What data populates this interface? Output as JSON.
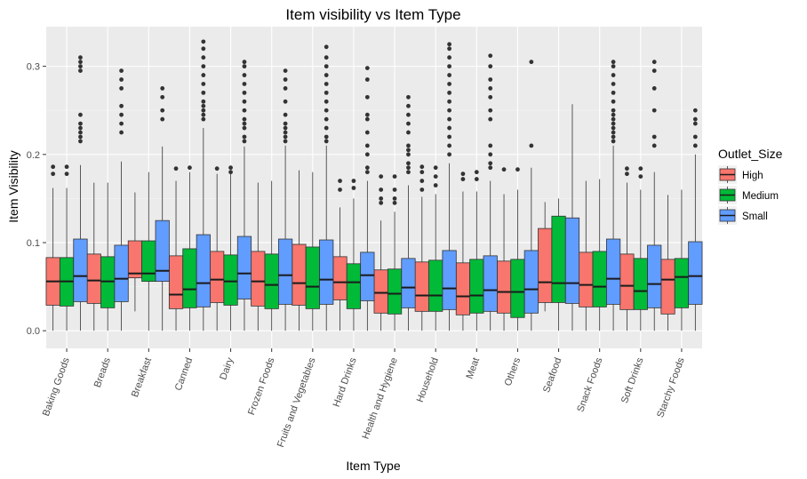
{
  "chart_data": {
    "type": "box",
    "title": "Item visibility vs Item Type",
    "xlabel": "Item Type",
    "ylabel": "Item Visibility",
    "ylim": [
      -0.02,
      0.345
    ],
    "yticks": [
      0.0,
      0.1,
      0.2,
      0.3
    ],
    "ytick_labels": [
      "0.0",
      "0.1",
      "0.2",
      "0.3"
    ],
    "grid": true,
    "legend": {
      "title": "Outlet_Size",
      "placement": "right",
      "entries": [
        {
          "name": "High",
          "color": "#F8766D"
        },
        {
          "name": "Medium",
          "color": "#00BA38"
        },
        {
          "name": "Small",
          "color": "#619CFF"
        }
      ]
    },
    "categories": [
      "Baking Goods",
      "Breads",
      "Breakfast",
      "Canned",
      "Dairy",
      "Frozen Foods",
      "Fruits and Vegetables",
      "Hard Drinks",
      "Health and Hygiene",
      "Household",
      "Meat",
      "Others",
      "Seafood",
      "Snack Foods",
      "Soft Drinks",
      "Starchy Foods"
    ],
    "series": [
      {
        "name": "High",
        "color": "#F8766D",
        "boxes": [
          {
            "min": 0.0,
            "q1": 0.029,
            "median": 0.056,
            "q3": 0.083,
            "max": 0.162,
            "outliers": [
              0.178,
              0.186
            ]
          },
          {
            "min": 0.0,
            "q1": 0.031,
            "median": 0.057,
            "q3": 0.087,
            "max": 0.168,
            "outliers": []
          },
          {
            "min": 0.022,
            "q1": 0.06,
            "median": 0.065,
            "q3": 0.102,
            "max": 0.157,
            "outliers": []
          },
          {
            "min": 0.0,
            "q1": 0.025,
            "median": 0.041,
            "q3": 0.085,
            "max": 0.17,
            "outliers": [
              0.184
            ]
          },
          {
            "min": 0.0,
            "q1": 0.032,
            "median": 0.058,
            "q3": 0.09,
            "max": 0.178,
            "outliers": [
              0.184
            ]
          },
          {
            "min": 0.0,
            "q1": 0.028,
            "median": 0.056,
            "q3": 0.09,
            "max": 0.168,
            "outliers": []
          },
          {
            "min": 0.0,
            "q1": 0.029,
            "median": 0.054,
            "q3": 0.098,
            "max": 0.182,
            "outliers": []
          },
          {
            "min": 0.0,
            "q1": 0.035,
            "median": 0.055,
            "q3": 0.084,
            "max": 0.14,
            "outliers": [
              0.16,
              0.17
            ]
          },
          {
            "min": 0.0,
            "q1": 0.02,
            "median": 0.043,
            "q3": 0.069,
            "max": 0.125,
            "outliers": [
              0.145,
              0.15,
              0.16,
              0.175
            ]
          },
          {
            "min": 0.0,
            "q1": 0.022,
            "median": 0.04,
            "q3": 0.078,
            "max": 0.152,
            "outliers": [
              0.16,
              0.17,
              0.18,
              0.186
            ]
          },
          {
            "min": 0.0,
            "q1": 0.018,
            "median": 0.039,
            "q3": 0.077,
            "max": 0.158,
            "outliers": [
              0.172,
              0.178
            ]
          },
          {
            "min": 0.0,
            "q1": 0.02,
            "median": 0.044,
            "q3": 0.079,
            "max": 0.155,
            "outliers": [
              0.183
            ]
          },
          {
            "min": 0.022,
            "q1": 0.032,
            "median": 0.055,
            "q3": 0.116,
            "max": 0.146,
            "outliers": []
          },
          {
            "min": 0.0,
            "q1": 0.027,
            "median": 0.052,
            "q3": 0.089,
            "max": 0.17,
            "outliers": []
          },
          {
            "min": 0.0,
            "q1": 0.024,
            "median": 0.051,
            "q3": 0.087,
            "max": 0.168,
            "outliers": [
              0.178,
              0.184
            ]
          },
          {
            "min": 0.0,
            "q1": 0.019,
            "median": 0.058,
            "q3": 0.081,
            "max": 0.154,
            "outliers": []
          }
        ]
      },
      {
        "name": "Medium",
        "color": "#00BA38",
        "boxes": [
          {
            "min": 0.0,
            "q1": 0.028,
            "median": 0.056,
            "q3": 0.083,
            "max": 0.162,
            "outliers": [
              0.178,
              0.186
            ]
          },
          {
            "min": 0.0,
            "q1": 0.026,
            "median": 0.056,
            "q3": 0.084,
            "max": 0.168,
            "outliers": []
          },
          {
            "min": 0.0,
            "q1": 0.056,
            "median": 0.065,
            "q3": 0.102,
            "max": 0.18,
            "outliers": []
          },
          {
            "min": 0.0,
            "q1": 0.026,
            "median": 0.047,
            "q3": 0.093,
            "max": 0.18,
            "outliers": [
              0.185
            ]
          },
          {
            "min": 0.0,
            "q1": 0.029,
            "median": 0.056,
            "q3": 0.086,
            "max": 0.178,
            "outliers": [
              0.18,
              0.185
            ]
          },
          {
            "min": 0.0,
            "q1": 0.025,
            "median": 0.052,
            "q3": 0.087,
            "max": 0.17,
            "outliers": []
          },
          {
            "min": 0.0,
            "q1": 0.025,
            "median": 0.05,
            "q3": 0.095,
            "max": 0.18,
            "outliers": []
          },
          {
            "min": 0.0,
            "q1": 0.025,
            "median": 0.055,
            "q3": 0.076,
            "max": 0.15,
            "outliers": [
              0.162,
              0.17
            ]
          },
          {
            "min": 0.0,
            "q1": 0.019,
            "median": 0.042,
            "q3": 0.07,
            "max": 0.135,
            "outliers": [
              0.145,
              0.15,
              0.16,
              0.175
            ]
          },
          {
            "min": 0.0,
            "q1": 0.022,
            "median": 0.04,
            "q3": 0.08,
            "max": 0.155,
            "outliers": [
              0.165,
              0.175,
              0.185
            ]
          },
          {
            "min": 0.0,
            "q1": 0.02,
            "median": 0.04,
            "q3": 0.081,
            "max": 0.158,
            "outliers": [
              0.172,
              0.18
            ]
          },
          {
            "min": 0.0,
            "q1": 0.015,
            "median": 0.044,
            "q3": 0.081,
            "max": 0.16,
            "outliers": [
              0.183
            ]
          },
          {
            "min": 0.0,
            "q1": 0.032,
            "median": 0.054,
            "q3": 0.13,
            "max": 0.15,
            "outliers": []
          },
          {
            "min": 0.0,
            "q1": 0.027,
            "median": 0.05,
            "q3": 0.09,
            "max": 0.172,
            "outliers": []
          },
          {
            "min": 0.0,
            "q1": 0.024,
            "median": 0.045,
            "q3": 0.082,
            "max": 0.16,
            "outliers": [
              0.175,
              0.184
            ]
          },
          {
            "min": 0.0,
            "q1": 0.026,
            "median": 0.061,
            "q3": 0.082,
            "max": 0.16,
            "outliers": []
          }
        ]
      },
      {
        "name": "Small",
        "color": "#619CFF",
        "boxes": [
          {
            "min": 0.0,
            "q1": 0.033,
            "median": 0.062,
            "q3": 0.104,
            "max": 0.188,
            "outliers": [
              0.215,
              0.22,
              0.225,
              0.23,
              0.235,
              0.245,
              0.295,
              0.3,
              0.305,
              0.31
            ]
          },
          {
            "min": 0.0,
            "q1": 0.033,
            "median": 0.059,
            "q3": 0.097,
            "max": 0.192,
            "outliers": [
              0.225,
              0.235,
              0.245,
              0.255,
              0.275,
              0.285,
              0.295
            ]
          },
          {
            "min": 0.0,
            "q1": 0.056,
            "median": 0.068,
            "q3": 0.125,
            "max": 0.209,
            "outliers": [
              0.24,
              0.25,
              0.265,
              0.275
            ]
          },
          {
            "min": 0.0,
            "q1": 0.027,
            "median": 0.054,
            "q3": 0.109,
            "max": 0.23,
            "outliers": [
              0.24,
              0.245,
              0.25,
              0.255,
              0.26,
              0.27,
              0.28,
              0.29,
              0.3,
              0.31,
              0.32,
              0.328
            ]
          },
          {
            "min": 0.0,
            "q1": 0.036,
            "median": 0.065,
            "q3": 0.107,
            "max": 0.209,
            "outliers": [
              0.215,
              0.22,
              0.23,
              0.235,
              0.24,
              0.25,
              0.26,
              0.27,
              0.28,
              0.29,
              0.3,
              0.305
            ]
          },
          {
            "min": 0.0,
            "q1": 0.03,
            "median": 0.063,
            "q3": 0.104,
            "max": 0.21,
            "outliers": [
              0.215,
              0.22,
              0.225,
              0.23,
              0.235,
              0.245,
              0.26,
              0.275,
              0.285,
              0.295
            ]
          },
          {
            "min": 0.0,
            "q1": 0.03,
            "median": 0.058,
            "q3": 0.103,
            "max": 0.21,
            "outliers": [
              0.215,
              0.22,
              0.23,
              0.24,
              0.25,
              0.26,
              0.27,
              0.28,
              0.29,
              0.3,
              0.31,
              0.322
            ]
          },
          {
            "min": 0.0,
            "q1": 0.034,
            "median": 0.063,
            "q3": 0.089,
            "max": 0.17,
            "outliers": [
              0.18,
              0.185,
              0.2,
              0.21,
              0.225,
              0.24,
              0.245,
              0.265,
              0.285,
              0.298
            ]
          },
          {
            "min": 0.0,
            "q1": 0.026,
            "median": 0.049,
            "q3": 0.082,
            "max": 0.165,
            "outliers": [
              0.18,
              0.185,
              0.19,
              0.2,
              0.205,
              0.21,
              0.225,
              0.235,
              0.245,
              0.255,
              0.265
            ]
          },
          {
            "min": 0.0,
            "q1": 0.024,
            "median": 0.048,
            "q3": 0.091,
            "max": 0.19,
            "outliers": [
              0.2,
              0.21,
              0.22,
              0.23,
              0.24,
              0.25,
              0.26,
              0.27,
              0.28,
              0.29,
              0.3,
              0.31,
              0.32,
              0.325
            ]
          },
          {
            "min": 0.0,
            "q1": 0.022,
            "median": 0.046,
            "q3": 0.085,
            "max": 0.17,
            "outliers": [
              0.185,
              0.19,
              0.2,
              0.21,
              0.24,
              0.25,
              0.265,
              0.275,
              0.285,
              0.3,
              0.312
            ]
          },
          {
            "min": 0.0,
            "q1": 0.02,
            "median": 0.047,
            "q3": 0.091,
            "max": 0.185,
            "outliers": [
              0.21,
              0.305
            ]
          },
          {
            "min": 0.0,
            "q1": 0.031,
            "median": 0.054,
            "q3": 0.128,
            "max": 0.257,
            "outliers": []
          },
          {
            "min": 0.0,
            "q1": 0.03,
            "median": 0.059,
            "q3": 0.104,
            "max": 0.21,
            "outliers": [
              0.215,
              0.22,
              0.225,
              0.23,
              0.235,
              0.24,
              0.245,
              0.25,
              0.26,
              0.27,
              0.28,
              0.29,
              0.3,
              0.305
            ]
          },
          {
            "min": 0.0,
            "q1": 0.026,
            "median": 0.053,
            "q3": 0.097,
            "max": 0.18,
            "outliers": [
              0.21,
              0.22,
              0.25,
              0.275,
              0.295,
              0.305
            ]
          },
          {
            "min": 0.0,
            "q1": 0.03,
            "median": 0.062,
            "q3": 0.101,
            "max": 0.2,
            "outliers": [
              0.21,
              0.22,
              0.235,
              0.24,
              0.25
            ]
          }
        ]
      }
    ]
  }
}
